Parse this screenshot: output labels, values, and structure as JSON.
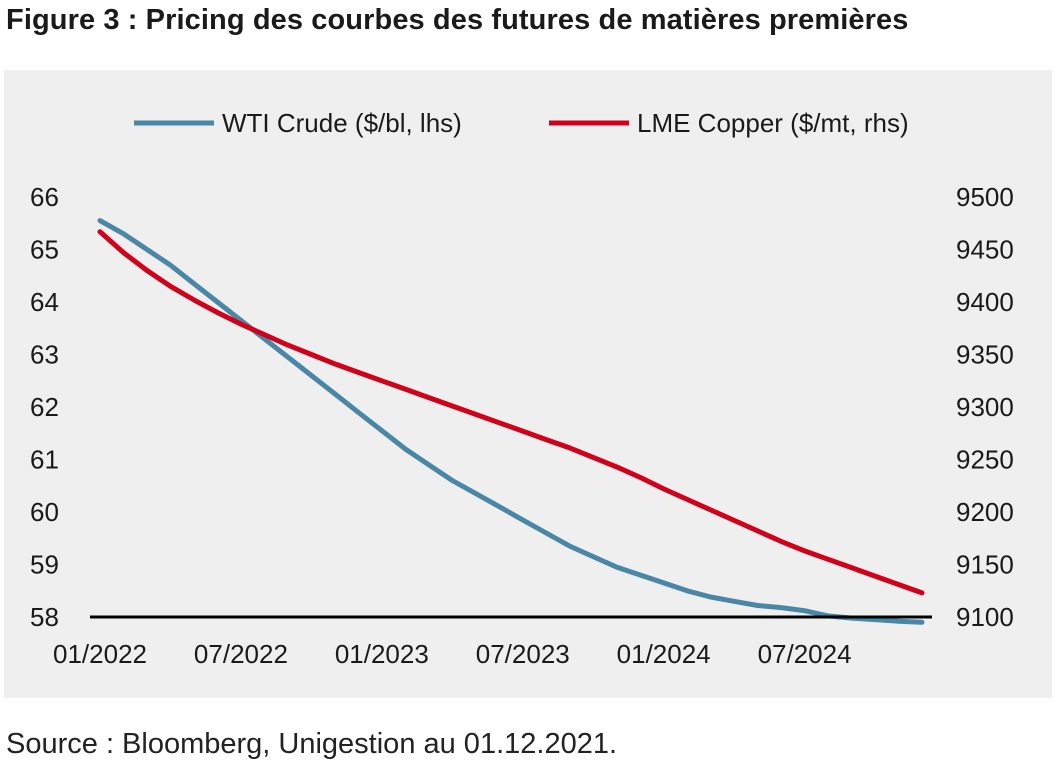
{
  "title": "Figure 3 : Pricing des courbes des futures de matières premières",
  "source": "Source : Bloomberg, Unigestion au 01.12.2021.",
  "colors": {
    "wti": "#4a86a6",
    "copper": "#d0021b",
    "panel": "#efefef",
    "axis": "#000000"
  },
  "chart_data": {
    "type": "line",
    "x_tick_labels": [
      "01/2022",
      "07/2022",
      "01/2023",
      "07/2023",
      "01/2024",
      "07/2024"
    ],
    "x_range": [
      "2022-01",
      "2024-12"
    ],
    "y_left": {
      "range": [
        58,
        66
      ],
      "ticks": [
        "58",
        "59",
        "60",
        "61",
        "62",
        "63",
        "64",
        "65",
        "66"
      ]
    },
    "y_right": {
      "range": [
        9100,
        9500
      ],
      "ticks": [
        "9100",
        "9150",
        "9200",
        "9250",
        "9300",
        "9350",
        "9400",
        "9450",
        "9500"
      ]
    },
    "legend_position": "top-center",
    "series": [
      {
        "name": "WTI Crude ($/bl, lhs)",
        "axis": "left",
        "x": [
          "2022-01",
          "2022-02",
          "2022-03",
          "2022-04",
          "2022-05",
          "2022-06",
          "2022-07",
          "2022-08",
          "2022-09",
          "2022-10",
          "2022-11",
          "2022-12",
          "2023-01",
          "2023-02",
          "2023-03",
          "2023-04",
          "2023-05",
          "2023-06",
          "2023-07",
          "2023-08",
          "2023-09",
          "2023-10",
          "2023-11",
          "2023-12",
          "2024-01",
          "2024-02",
          "2024-03",
          "2024-04",
          "2024-05",
          "2024-06",
          "2024-07",
          "2024-08",
          "2024-09",
          "2024-10",
          "2024-11",
          "2024-12"
        ],
        "values": [
          65.55,
          65.3,
          65.0,
          64.7,
          64.35,
          64.0,
          63.65,
          63.3,
          62.95,
          62.6,
          62.25,
          61.9,
          61.55,
          61.2,
          60.9,
          60.6,
          60.35,
          60.1,
          59.85,
          59.6,
          59.35,
          59.15,
          58.95,
          58.8,
          58.65,
          58.5,
          58.38,
          58.3,
          58.22,
          58.18,
          58.12,
          58.02,
          57.98,
          57.95,
          57.92,
          57.9
        ]
      },
      {
        "name": "LME Copper ($/mt, rhs)",
        "axis": "right",
        "x": [
          "2022-01",
          "2022-02",
          "2022-03",
          "2022-04",
          "2022-05",
          "2022-06",
          "2022-07",
          "2022-08",
          "2022-09",
          "2022-10",
          "2022-11",
          "2022-12",
          "2023-01",
          "2023-02",
          "2023-03",
          "2023-04",
          "2023-05",
          "2023-06",
          "2023-07",
          "2023-08",
          "2023-09",
          "2023-10",
          "2023-11",
          "2023-12",
          "2024-01",
          "2024-02",
          "2024-03",
          "2024-04",
          "2024-05",
          "2024-06",
          "2024-07",
          "2024-08",
          "2024-09",
          "2024-10",
          "2024-11",
          "2024-12"
        ],
        "values": [
          9467,
          9447,
          9430,
          9415,
          9402,
          9390,
          9379,
          9369,
          9359,
          9350,
          9341,
          9333,
          9325,
          9317,
          9309,
          9301,
          9293,
          9285,
          9277,
          9269,
          9261,
          9252,
          9243,
          9233,
          9222,
          9212,
          9202,
          9192,
          9182,
          9172,
          9163,
          9155,
          9147,
          9139,
          9131,
          9123
        ]
      }
    ]
  }
}
